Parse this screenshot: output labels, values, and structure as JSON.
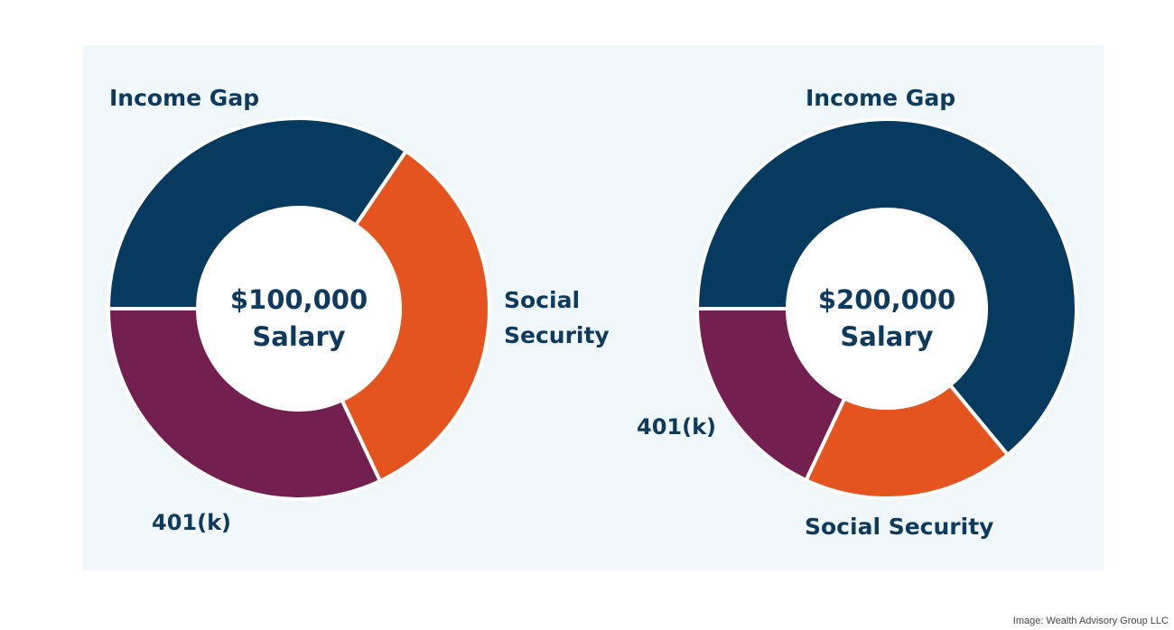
{
  "credit": "Image: Wealth Advisory Group LLC",
  "colors": {
    "panel_bg": "#eff7fa",
    "income_gap": "#063a5e",
    "social_security": "#e5531f",
    "k401": "#731f4f",
    "text": "#0e3a5e"
  },
  "chart_data": [
    {
      "type": "pie",
      "donut": true,
      "center_text": [
        "$100,000",
        "Salary"
      ],
      "slices": [
        {
          "label": "Income Gap",
          "value": 34.5,
          "color": "#063a5e"
        },
        {
          "label": "Social Security",
          "value": 33.5,
          "color": "#e5531f"
        },
        {
          "label": "401(k)",
          "value": 32.0,
          "color": "#731f4f"
        }
      ]
    },
    {
      "type": "pie",
      "donut": true,
      "center_text": [
        "$200,000",
        "Salary"
      ],
      "slices": [
        {
          "label": "Income Gap",
          "value": 64.0,
          "color": "#063a5e"
        },
        {
          "label": "Social Security",
          "value": 18.0,
          "color": "#e5531f"
        },
        {
          "label": "401(k)",
          "value": 18.0,
          "color": "#731f4f"
        }
      ]
    }
  ]
}
